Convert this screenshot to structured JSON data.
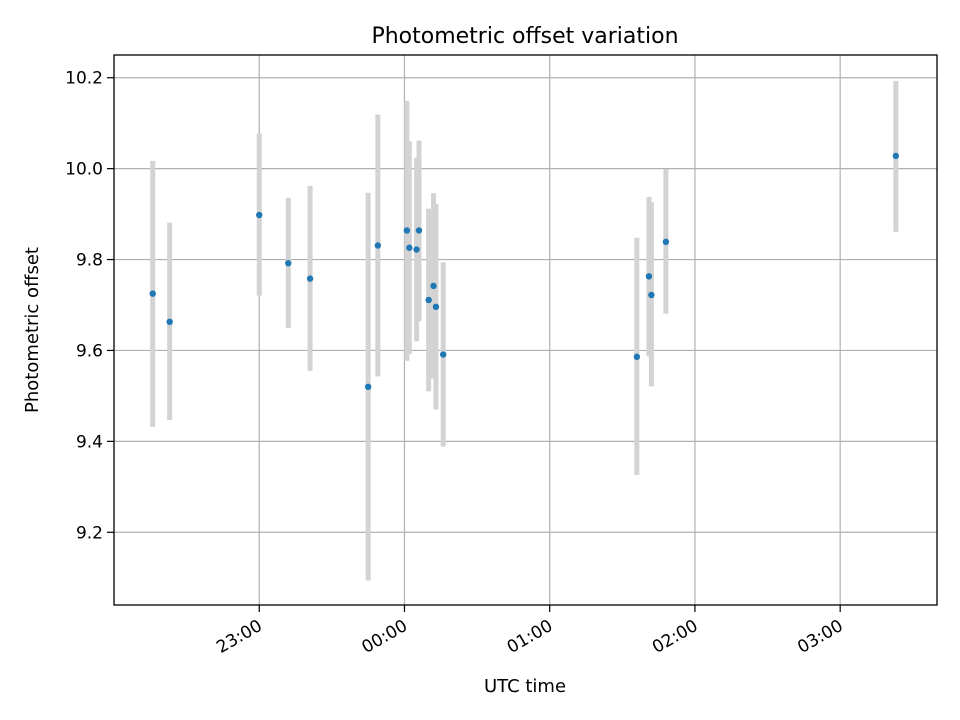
{
  "chart_data": {
    "type": "scatter",
    "title": "Photometric offset variation",
    "xlabel": "UTC time",
    "ylabel": "Photometric offset",
    "x_axis_kind": "time",
    "xlim": [
      "22:00",
      "03:40"
    ],
    "ylim": [
      9.04,
      10.25
    ],
    "x_ticks": [
      "23:00",
      "00:00",
      "01:00",
      "02:00",
      "03:00"
    ],
    "y_ticks": [
      9.2,
      9.4,
      9.6,
      9.8,
      10.0,
      10.2
    ],
    "y_tick_labels": [
      "9.2",
      "9.4",
      "9.6",
      "9.8",
      "10.0",
      "10.2"
    ],
    "grid": true,
    "point_color": "#1f77b4",
    "errorbar_color": "#d3d3d3",
    "points": [
      {
        "x": "22:16",
        "y": 9.725,
        "ylow": 9.432,
        "yhigh": 10.017
      },
      {
        "x": "22:23",
        "y": 9.663,
        "ylow": 9.447,
        "yhigh": 9.881
      },
      {
        "x": "23:00",
        "y": 9.898,
        "ylow": 9.721,
        "yhigh": 10.077
      },
      {
        "x": "23:12",
        "y": 9.792,
        "ylow": 9.649,
        "yhigh": 9.936
      },
      {
        "x": "23:21",
        "y": 9.758,
        "ylow": 9.555,
        "yhigh": 9.962
      },
      {
        "x": "23:45",
        "y": 9.52,
        "ylow": 9.094,
        "yhigh": 9.947
      },
      {
        "x": "23:49",
        "y": 9.831,
        "ylow": 9.543,
        "yhigh": 10.119
      },
      {
        "x": "00:01",
        "y": 9.864,
        "ylow": 9.577,
        "yhigh": 10.149
      },
      {
        "x": "00:02",
        "y": 9.826,
        "ylow": 9.592,
        "yhigh": 10.06
      },
      {
        "x": "00:05",
        "y": 9.822,
        "ylow": 9.62,
        "yhigh": 10.024
      },
      {
        "x": "00:06",
        "y": 9.864,
        "ylow": 9.664,
        "yhigh": 10.062
      },
      {
        "x": "00:10",
        "y": 9.711,
        "ylow": 9.51,
        "yhigh": 9.912
      },
      {
        "x": "00:12",
        "y": 9.742,
        "ylow": 9.538,
        "yhigh": 9.946
      },
      {
        "x": "00:13",
        "y": 9.696,
        "ylow": 9.47,
        "yhigh": 9.922
      },
      {
        "x": "00:16",
        "y": 9.591,
        "ylow": 9.389,
        "yhigh": 9.794
      },
      {
        "x": "01:36",
        "y": 9.586,
        "ylow": 9.326,
        "yhigh": 9.848
      },
      {
        "x": "01:41",
        "y": 9.763,
        "ylow": 9.587,
        "yhigh": 9.938
      },
      {
        "x": "01:42",
        "y": 9.722,
        "ylow": 9.521,
        "yhigh": 9.926
      },
      {
        "x": "01:48",
        "y": 9.839,
        "ylow": 9.681,
        "yhigh": 9.999
      },
      {
        "x": "03:23",
        "y": 10.028,
        "ylow": 9.861,
        "yhigh": 10.193
      }
    ]
  }
}
